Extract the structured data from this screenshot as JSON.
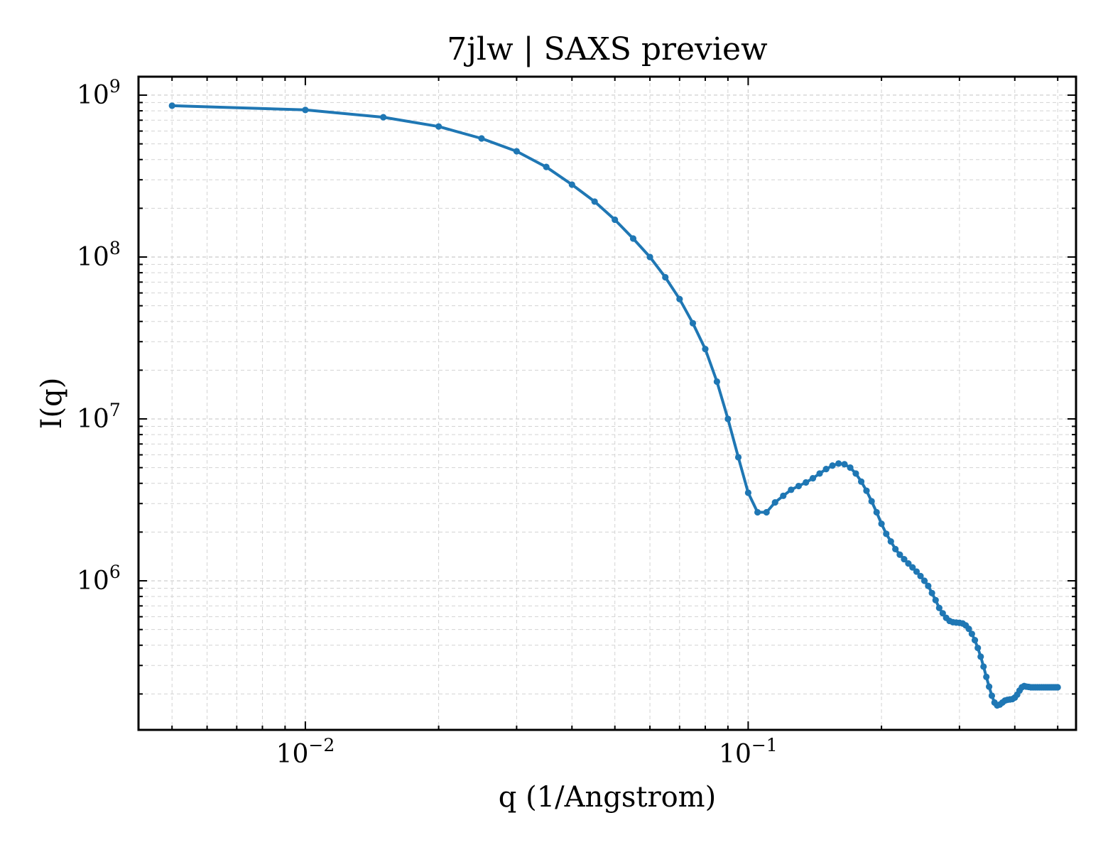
{
  "chart_data": {
    "type": "line",
    "title": "7jlw | SAXS preview",
    "xlabel": "q (1/Angstrom)",
    "ylabel": "I(q)",
    "xscale": "log",
    "yscale": "log",
    "xlim": [
      0.0042,
      0.55
    ],
    "ylim": [
      120000,
      1300000000
    ],
    "grid": true,
    "x_ticks": [
      {
        "base": "10",
        "exp": "−2",
        "value": 0.01
      },
      {
        "base": "10",
        "exp": "−1",
        "value": 0.1
      }
    ],
    "y_ticks": [
      {
        "base": "10",
        "exp": "6",
        "value": 1000000
      },
      {
        "base": "10",
        "exp": "7",
        "value": 10000000
      },
      {
        "base": "10",
        "exp": "8",
        "value": 100000000
      },
      {
        "base": "10",
        "exp": "9",
        "value": 1000000000
      }
    ],
    "line_color": "#1f77b4",
    "series": [
      {
        "x": [
          0.005,
          0.01,
          0.015,
          0.02,
          0.025,
          0.03,
          0.035,
          0.04,
          0.045,
          0.05,
          0.055,
          0.06,
          0.065,
          0.07,
          0.075,
          0.08,
          0.085,
          0.09,
          0.095,
          0.1,
          0.105,
          0.11,
          0.115,
          0.12,
          0.125,
          0.13,
          0.135,
          0.14,
          0.145,
          0.15,
          0.155,
          0.16,
          0.165,
          0.17,
          0.175,
          0.18,
          0.185,
          0.19,
          0.195,
          0.2,
          0.205,
          0.21,
          0.215,
          0.22,
          0.225,
          0.23,
          0.235,
          0.24,
          0.245,
          0.25,
          0.255,
          0.26,
          0.265,
          0.27,
          0.275,
          0.28,
          0.285,
          0.29,
          0.295,
          0.3,
          0.305,
          0.31,
          0.315,
          0.32,
          0.325,
          0.33,
          0.335,
          0.34,
          0.345,
          0.35,
          0.355,
          0.36,
          0.365,
          0.37,
          0.375,
          0.38,
          0.385,
          0.39,
          0.395,
          0.4,
          0.405,
          0.41,
          0.415,
          0.42,
          0.425,
          0.43,
          0.435,
          0.44,
          0.445,
          0.45,
          0.455,
          0.46,
          0.465,
          0.47,
          0.475,
          0.48,
          0.485,
          0.49,
          0.495,
          0.5
        ],
        "y": [
          860000000,
          810000000,
          730000000,
          640000000,
          540000000,
          450000000,
          360000000,
          280000000,
          220000000,
          170000000,
          130000000,
          100000000,
          75000000,
          55000000,
          39000000,
          27000000,
          17000000,
          10000000,
          5800000,
          3500000,
          2650000,
          2650000,
          3050000,
          3350000,
          3650000,
          3850000,
          4050000,
          4300000,
          4600000,
          4900000,
          5150000,
          5300000,
          5250000,
          5000000,
          4600000,
          4100000,
          3600000,
          3100000,
          2650000,
          2250000,
          1950000,
          1750000,
          1570000,
          1450000,
          1360000,
          1280000,
          1210000,
          1140000,
          1070000,
          1000000,
          930000,
          840000,
          760000,
          680000,
          630000,
          590000,
          565000,
          555000,
          552000,
          550000,
          545000,
          530000,
          505000,
          470000,
          430000,
          385000,
          340000,
          295000,
          255000,
          222000,
          195000,
          177000,
          170000,
          172000,
          177000,
          182000,
          184000,
          185000,
          186000,
          190000,
          198000,
          210000,
          220000,
          224000,
          222000,
          221000,
          220000,
          220000,
          220000,
          220000,
          220000,
          220000,
          220000,
          220000,
          220000,
          220000,
          220000,
          220000,
          220000,
          220000
        ]
      }
    ]
  }
}
